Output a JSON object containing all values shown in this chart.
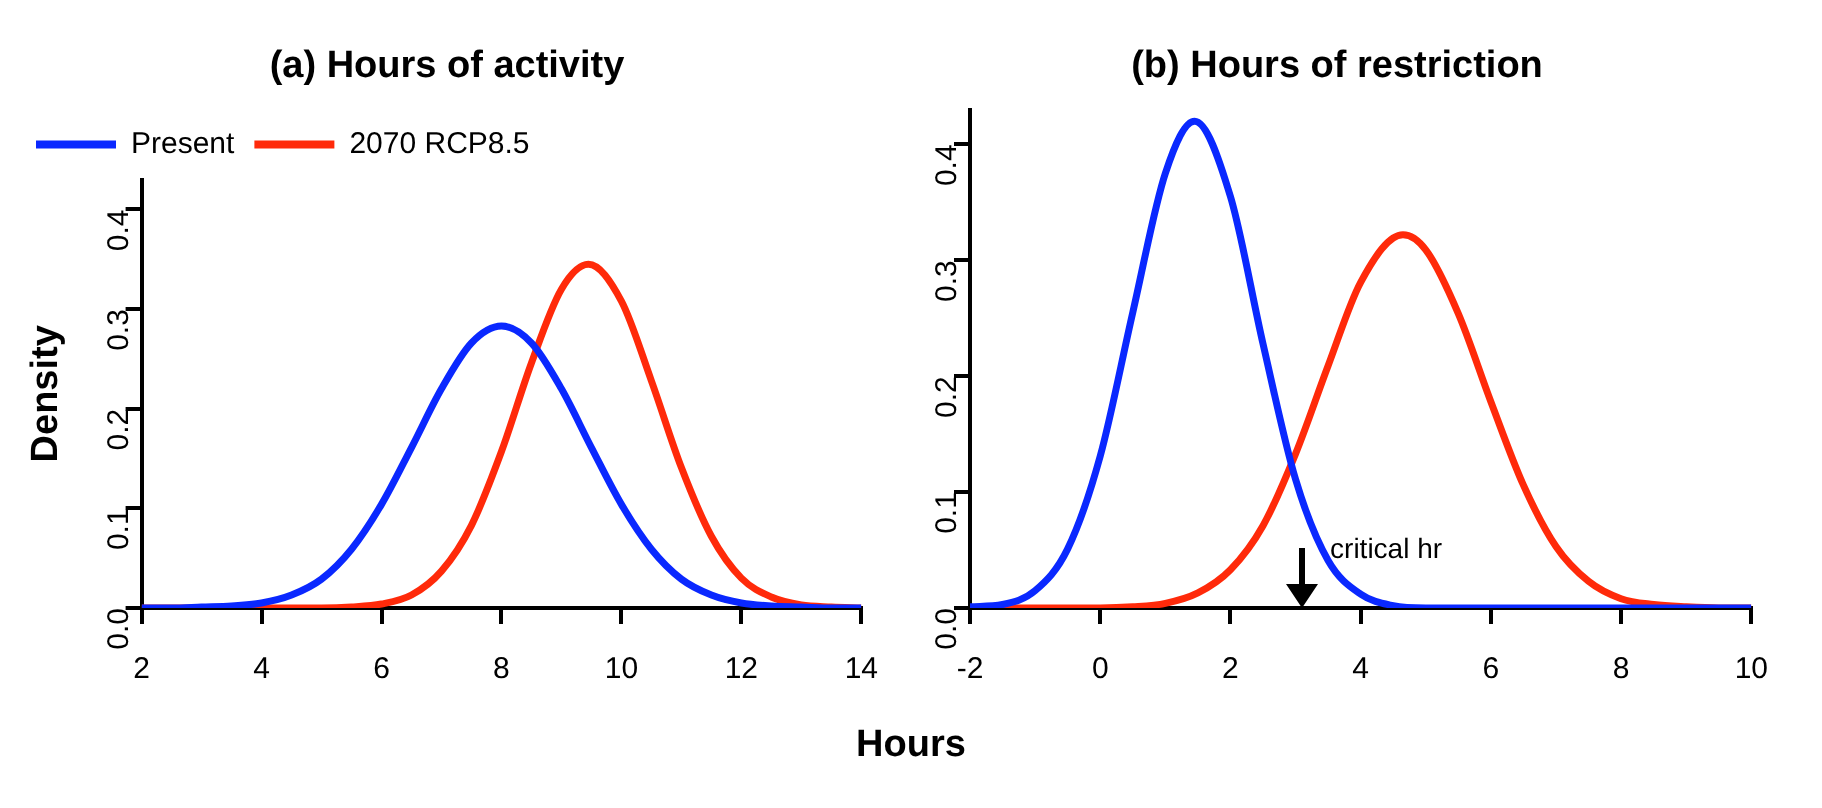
{
  "chart_data": [
    {
      "type": "line",
      "title": "(a) Hours of activity",
      "xlabel": "Hours",
      "ylabel": "Density",
      "xlim": [
        2,
        14
      ],
      "xticks": [
        2,
        4,
        6,
        8,
        10,
        12,
        14
      ],
      "ylim": [
        0,
        0.43
      ],
      "yticks": [
        {
          "value": 0,
          "label": "0.0"
        },
        0.1,
        0.2,
        0.3,
        0.4
      ],
      "legend": "top left",
      "line_style": "solid",
      "marker": "none",
      "series": [
        {
          "name": "Present",
          "color": "#0a28ff",
          "x": [
            2,
            2.5,
            3,
            3.5,
            4,
            4.5,
            5,
            5.5,
            6,
            6.5,
            7,
            7.5,
            8,
            8.5,
            9,
            9.5,
            10,
            10.5,
            11,
            11.5,
            12,
            12.5,
            13,
            13.5,
            14
          ],
          "values": [
            0,
            0,
            0.001,
            0.002,
            0.005,
            0.013,
            0.029,
            0.059,
            0.104,
            0.161,
            0.22,
            0.266,
            0.283,
            0.266,
            0.22,
            0.161,
            0.104,
            0.059,
            0.029,
            0.013,
            0.005,
            0.002,
            0.001,
            0,
            0
          ]
        },
        {
          "name": "2070 RCP8.5",
          "color": "#ff2a0a",
          "x": [
            2,
            3,
            4,
            5,
            5.5,
            6,
            6.5,
            7,
            7.5,
            8,
            8.5,
            9,
            9.45,
            10,
            10.5,
            11,
            11.5,
            12,
            12.5,
            13,
            13.5,
            14
          ],
          "values": [
            0,
            0,
            0,
            0,
            0.001,
            0.004,
            0.013,
            0.037,
            0.083,
            0.157,
            0.246,
            0.32,
            0.345,
            0.308,
            0.228,
            0.141,
            0.072,
            0.03,
            0.011,
            0.003,
            0.001,
            0
          ]
        }
      ]
    },
    {
      "type": "line",
      "title": "(b) Hours of restriction",
      "xlim": [
        -2,
        10
      ],
      "xticks": [
        -2,
        0,
        2,
        4,
        6,
        8,
        10
      ],
      "ylim": [
        0,
        0.43
      ],
      "yticks": [
        {
          "value": 0,
          "label": "0.0"
        },
        0.1,
        0.2,
        0.3,
        0.4
      ],
      "line_style": "solid",
      "marker": "none",
      "annotations": [
        "critical hr"
      ],
      "series": [
        {
          "color": "#0a28ff",
          "x": [
            -2,
            -1.5,
            -1,
            -0.5,
            0,
            0.5,
            1,
            1.45,
            2,
            2.5,
            3,
            3.5,
            4,
            4.5,
            5,
            6,
            7,
            8,
            9,
            10
          ],
          "values": [
            0.001,
            0.003,
            0.015,
            0.051,
            0.131,
            0.255,
            0.375,
            0.42,
            0.355,
            0.228,
            0.111,
            0.041,
            0.012,
            0.002,
            0,
            0,
            0,
            0,
            0,
            0
          ]
        },
        {
          "color": "#ff2a0a",
          "x": [
            -2,
            -1,
            0,
            0.5,
            1,
            1.5,
            2,
            2.5,
            3,
            3.5,
            4,
            4.65,
            5,
            5.5,
            6,
            6.5,
            7,
            7.5,
            8,
            8.5,
            9,
            9.5,
            10
          ],
          "values": [
            0,
            0,
            0,
            0.001,
            0.004,
            0.013,
            0.033,
            0.071,
            0.133,
            0.209,
            0.281,
            0.322,
            0.309,
            0.254,
            0.178,
            0.106,
            0.053,
            0.023,
            0.008,
            0.003,
            0.001,
            0,
            0
          ]
        }
      ]
    }
  ]
}
